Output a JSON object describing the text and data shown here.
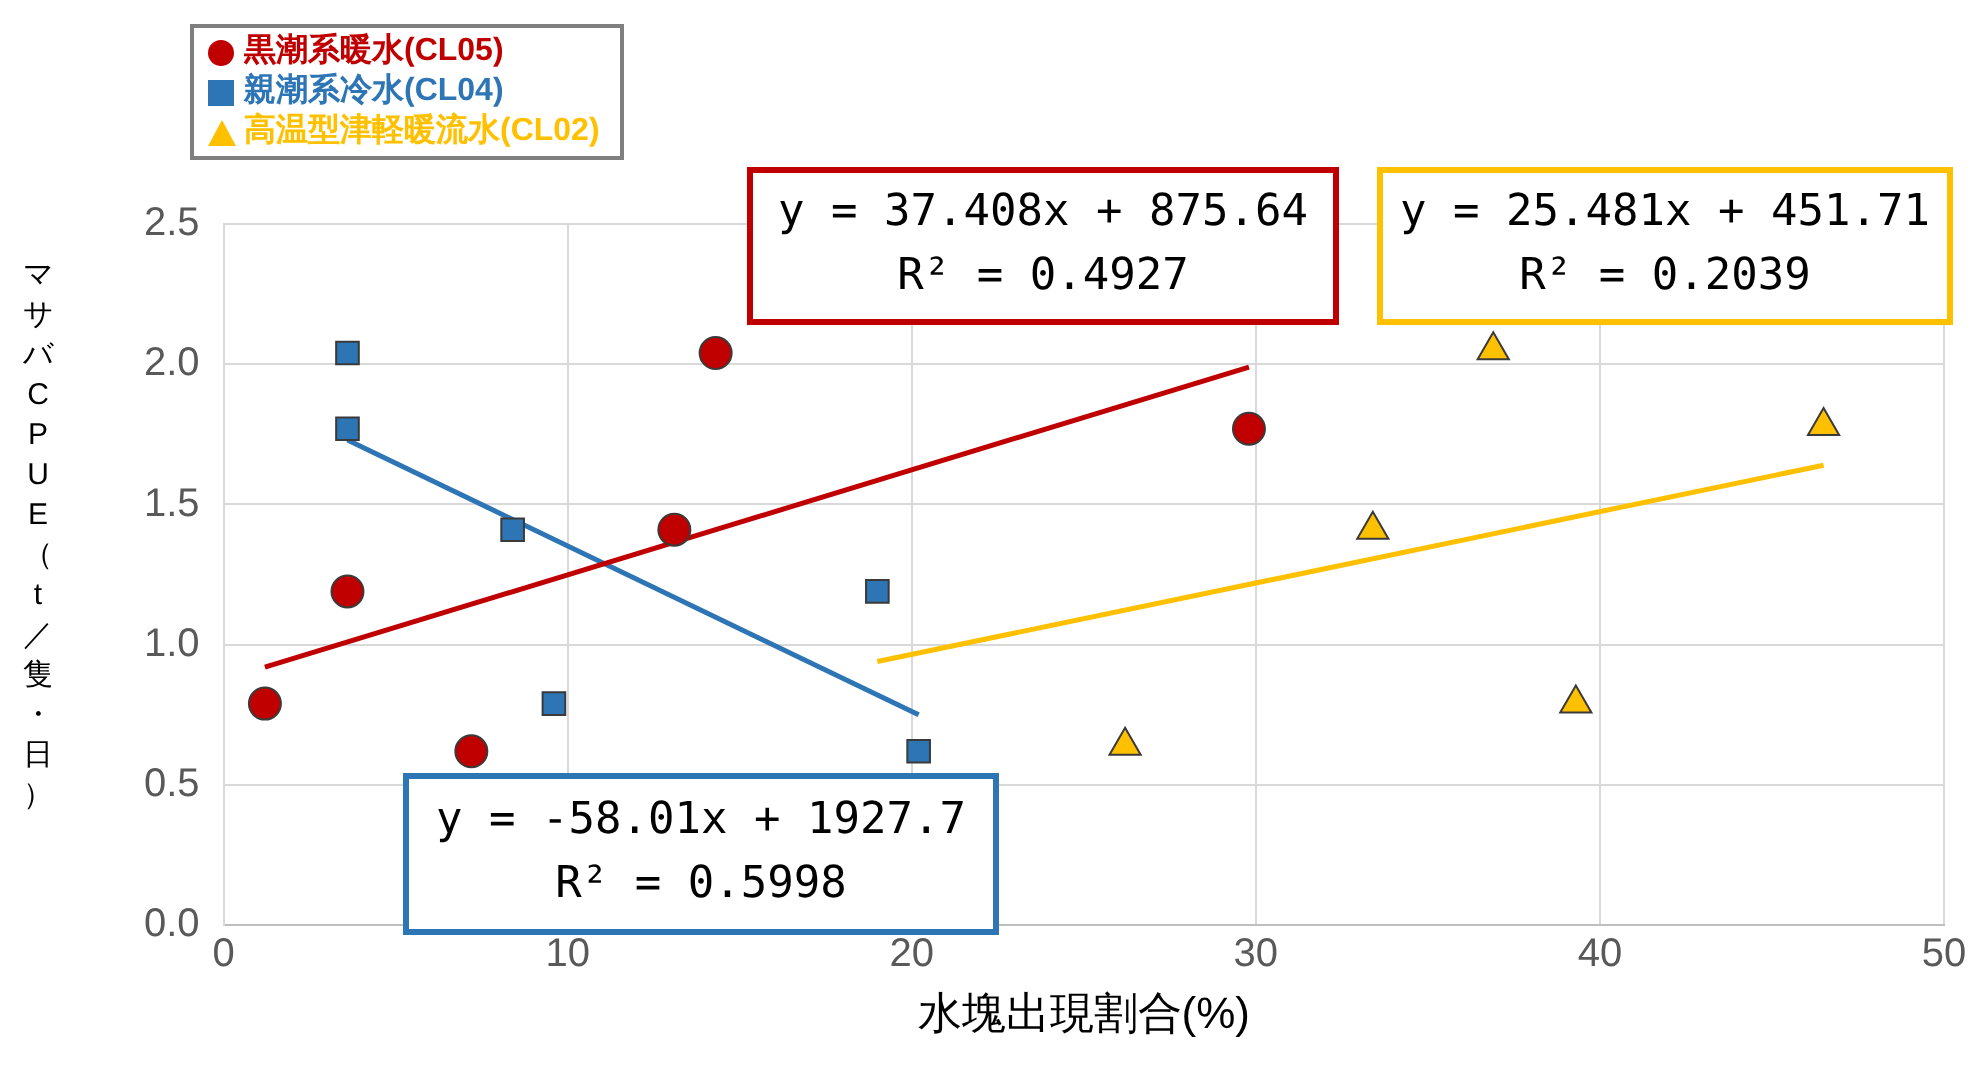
{
  "chart_data": {
    "type": "scatter",
    "xlabel": "水塊出現割合(%)",
    "ylabel": "マサバCPUE（t／隻・日）",
    "xlim": [
      0,
      50
    ],
    "xticks": [
      0,
      10,
      20,
      30,
      40,
      50
    ],
    "ylim": [
      0,
      2.5
    ],
    "yticks": [
      {
        "value": 0,
        "label": "0.0"
      },
      {
        "value": 0.5,
        "label": "0.5"
      },
      {
        "value": 1,
        "label": "1.0"
      },
      {
        "value": 1.5,
        "label": "1.5"
      },
      {
        "value": 2,
        "label": "2.0"
      },
      {
        "value": 2.5,
        "label": "2.5"
      }
    ],
    "grid": true,
    "legend": "top left",
    "series": [
      {
        "name": "黒潮系暖水(CL05)",
        "color": "#c00000",
        "marker": "circle",
        "x": [
          1.2,
          3.6,
          7.2,
          13.1,
          14.3,
          29.8
        ],
        "values": [
          0.79,
          1.19,
          0.62,
          1.41,
          2.04,
          1.77
        ]
      },
      {
        "name": "親潮系冷水(CL04)",
        "color": "#2e75b6",
        "marker": "square",
        "x": [
          3.6,
          3.6,
          8.4,
          9.6,
          19.0,
          20.2
        ],
        "values": [
          2.04,
          1.77,
          1.41,
          0.79,
          1.19,
          0.62
        ]
      },
      {
        "name": "高温型津軽暖流水(CL02)",
        "color": "#ffc000",
        "marker": "triangle",
        "x": [
          26.2,
          33.4,
          36.9,
          39.3,
          46.5
        ],
        "values": [
          0.64,
          1.41,
          2.05,
          0.79,
          1.78
        ]
      },
      {
        "type": "line",
        "color": "#c00000",
        "x": [
          1.2,
          29.8
        ],
        "values": [
          0.92,
          1.99
        ]
      },
      {
        "type": "line",
        "color": "#2e75b6",
        "x": [
          3.6,
          20.2
        ],
        "values": [
          1.73,
          0.75
        ]
      },
      {
        "type": "line",
        "color": "#ffc000",
        "x": [
          19.0,
          46.5
        ],
        "values": [
          0.94,
          1.64
        ]
      }
    ],
    "annotations": [
      "y = 37.408x + 875.64\nR² = 0.4927",
      "y = -58.01x + 1927.7\nR² = 0.5998",
      "y = 25.481x + 451.71\nR² = 0.2039"
    ]
  }
}
